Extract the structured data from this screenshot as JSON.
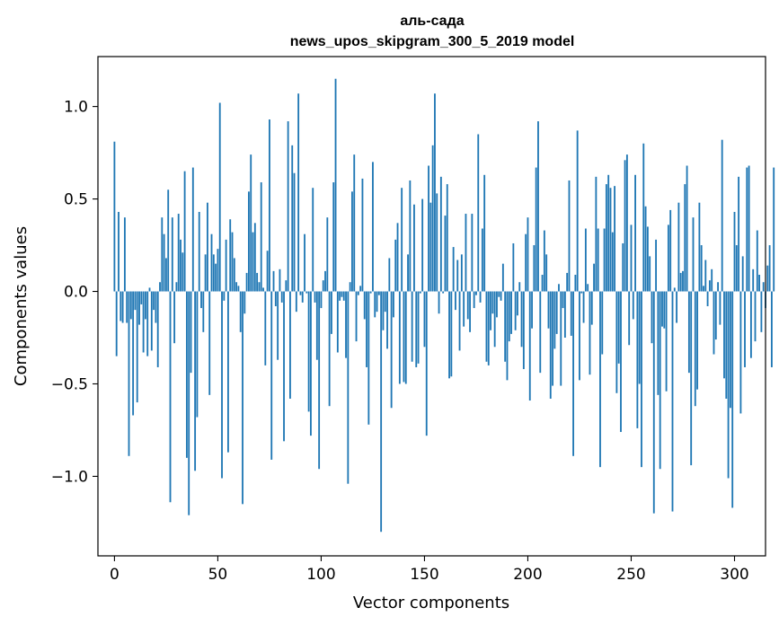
{
  "chart_data": {
    "type": "bar",
    "title": "аль-сада",
    "subtitle": "news_upos_skipgram_300_5_2019 model",
    "xlabel": "Vector components",
    "ylabel": "Components values",
    "xlim": [
      -8,
      315
    ],
    "ylim": [
      -1.43,
      1.27
    ],
    "xticks": [
      0,
      50,
      100,
      150,
      200,
      250,
      300
    ],
    "yticks": [
      -1.0,
      -0.5,
      0.0,
      0.5,
      1.0
    ],
    "ytick_labels": [
      "−1.0",
      "−0.5",
      "0.0",
      "0.5",
      "1.0"
    ],
    "bar_color": "#1f77b4",
    "grid": false,
    "legend": "none",
    "values": [
      0.81,
      -0.35,
      0.43,
      -0.16,
      -0.17,
      0.4,
      -0.17,
      -0.89,
      -0.15,
      -0.67,
      -0.1,
      -0.6,
      -0.18,
      -0.07,
      -0.33,
      -0.15,
      -0.35,
      0.02,
      -0.32,
      -0.1,
      -0.17,
      -0.41,
      0.05,
      0.4,
      0.31,
      0.18,
      0.55,
      -1.14,
      0.4,
      -0.28,
      0.05,
      0.42,
      0.28,
      0.21,
      0.65,
      -0.9,
      -1.21,
      -0.44,
      0.67,
      -0.97,
      -0.68,
      0.43,
      -0.09,
      -0.22,
      0.2,
      0.48,
      -0.56,
      0.31,
      0.2,
      0.15,
      0.23,
      1.02,
      -1.01,
      -0.05,
      0.28,
      -0.87,
      0.39,
      0.32,
      0.18,
      0.05,
      0.03,
      -0.22,
      -1.15,
      -0.12,
      0.1,
      0.54,
      0.74,
      0.32,
      0.37,
      0.1,
      0.05,
      0.59,
      0.02,
      -0.4,
      0.22,
      0.93,
      -0.91,
      0.11,
      -0.08,
      -0.37,
      0.12,
      -0.06,
      -0.81,
      0.06,
      0.92,
      -0.58,
      0.79,
      0.64,
      -0.11,
      1.07,
      -0.02,
      -0.06,
      0.31,
      -0.01,
      -0.65,
      -0.78,
      0.56,
      -0.06,
      -0.37,
      -0.96,
      -0.09,
      0.06,
      0.11,
      0.4,
      -0.62,
      -0.23,
      0.59,
      1.15,
      -0.33,
      -0.05,
      -0.03,
      -0.05,
      -0.36,
      -1.04,
      0.05,
      0.54,
      0.74,
      -0.27,
      -0.02,
      0.03,
      0.61,
      -0.15,
      -0.41,
      -0.72,
      -0.01,
      0.7,
      -0.14,
      -0.11,
      -0.02,
      -1.3,
      -0.21,
      -0.11,
      -0.31,
      0.18,
      -0.63,
      -0.14,
      0.28,
      0.37,
      -0.5,
      0.56,
      -0.49,
      -0.5,
      0.2,
      0.6,
      -0.38,
      0.47,
      -0.41,
      -0.39,
      -0.01,
      0.5,
      -0.3,
      -0.78,
      0.68,
      0.48,
      0.79,
      1.07,
      0.53,
      -0.12,
      0.62,
      -0.01,
      0.41,
      0.58,
      -0.47,
      -0.46,
      0.24,
      -0.1,
      0.17,
      -0.32,
      0.2,
      -0.19,
      0.42,
      -0.15,
      -0.22,
      0.42,
      -0.09,
      -0.02,
      0.85,
      -0.06,
      0.34,
      0.63,
      -0.38,
      -0.4,
      -0.21,
      -0.12,
      -0.3,
      -0.14,
      -0.03,
      -0.05,
      0.15,
      -0.38,
      -0.48,
      -0.27,
      -0.23,
      0.26,
      -0.21,
      -0.13,
      0.05,
      -0.3,
      -0.42,
      0.31,
      0.4,
      -0.59,
      -0.2,
      0.25,
      0.67,
      0.92,
      -0.44,
      0.09,
      0.33,
      0.2,
      -0.2,
      -0.58,
      -0.51,
      -0.31,
      -0.23,
      0.04,
      -0.51,
      -0.09,
      -0.25,
      0.1,
      0.6,
      -0.24,
      -0.89,
      0.09,
      0.87,
      -0.48,
      -0.01,
      -0.17,
      0.34,
      0.04,
      -0.45,
      -0.18,
      0.15,
      0.62,
      0.34,
      -0.95,
      -0.34,
      0.34,
      0.58,
      0.63,
      0.56,
      0.32,
      0.57,
      -0.55,
      -0.39,
      -0.76,
      0.26,
      0.71,
      0.74,
      -0.29,
      0.36,
      -0.15,
      0.63,
      -0.74,
      -0.5,
      -0.95,
      0.8,
      0.46,
      0.35,
      0.19,
      -0.28,
      -1.2,
      0.28,
      -0.56,
      -0.96,
      -0.19,
      -0.2,
      -0.54,
      0.36,
      0.44,
      -1.19,
      0.02,
      -0.17,
      0.48,
      0.1,
      0.11,
      0.58,
      0.68,
      -0.44,
      -0.94,
      0.4,
      -0.62,
      -0.53,
      0.48,
      0.25,
      0.03,
      0.17,
      -0.08,
      0.06,
      0.12,
      -0.34,
      -0.26,
      0.05,
      -0.18,
      0.82,
      -0.47,
      -0.58,
      -1.01,
      -0.63,
      -1.17,
      0.43,
      0.25,
      0.62,
      -0.66,
      0.19,
      -0.41,
      0.67,
      0.68,
      -0.36,
      0.12,
      -0.27,
      0.33,
      0.09,
      -0.22,
      0.05,
      -0.09,
      0.14,
      0.25,
      -0.41,
      0.67
    ]
  }
}
